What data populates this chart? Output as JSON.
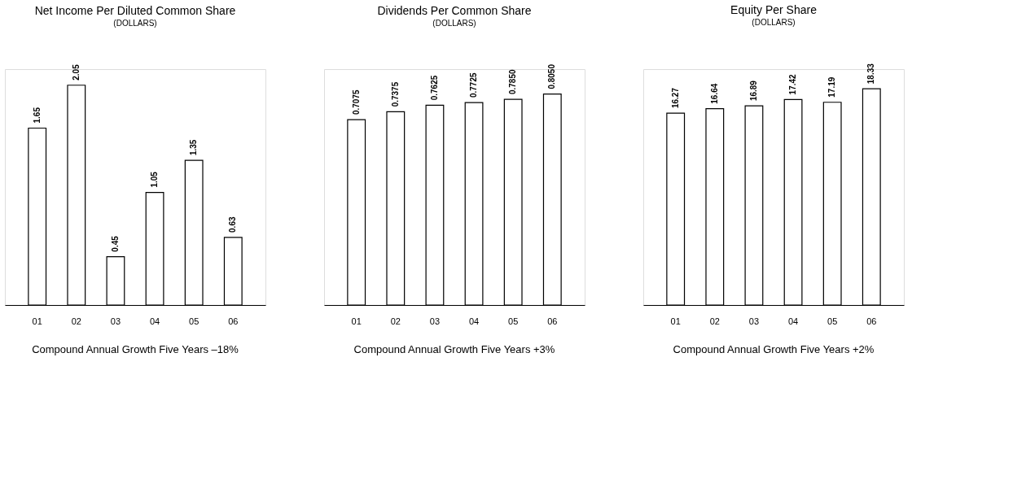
{
  "chart_data": [
    {
      "type": "bar",
      "title": "Net Income Per Diluted Common Share",
      "subtitle": "(DOLLARS)",
      "categories": [
        "01",
        "02",
        "03",
        "04",
        "05",
        "06"
      ],
      "values": [
        1.65,
        2.05,
        0.45,
        1.05,
        1.35,
        0.63
      ],
      "color": "#ffffff",
      "data_labels": true,
      "annotations": [
        "Compound Annual Growth Five Years –18%"
      ]
    },
    {
      "type": "bar",
      "title": "Dividends Per Common Share",
      "subtitle": "(DOLLARS)",
      "categories": [
        "01",
        "02",
        "03",
        "04",
        "05",
        "06"
      ],
      "values": [
        0.7075,
        0.7375,
        0.7625,
        0.7725,
        0.785,
        0.805
      ],
      "value_labels": [
        "0.7075",
        "0.7375",
        "0.7625",
        "0.7725",
        "0.7850",
        "0.8050"
      ],
      "color": "#ffffff",
      "annotations": [
        "Compound Annual Growth Five Years +3%"
      ]
    },
    {
      "type": "bar",
      "title": "Equity Per Share",
      "subtitle": "(DOLLARS)",
      "categories": [
        "01",
        "02",
        "03",
        "04",
        "05",
        "06"
      ],
      "values": [
        16.27,
        16.64,
        16.89,
        17.42,
        17.19,
        18.33
      ],
      "color": "#ffffff",
      "data_labels": true,
      "annotations": [
        "Compound Annual Growth Five Years +2%"
      ]
    }
  ]
}
